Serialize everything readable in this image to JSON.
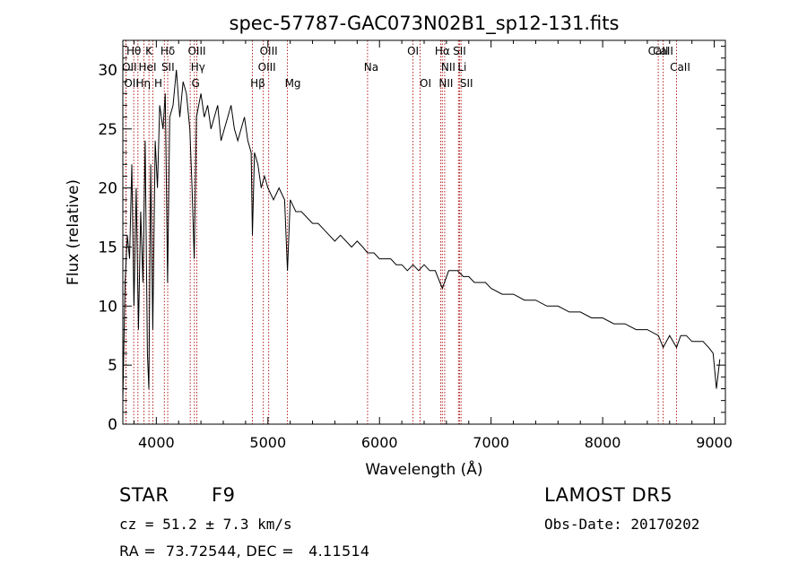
{
  "chart_data": {
    "type": "line",
    "title": "spec-57787-GAC073N02B1_sp12-131.fits",
    "xlabel": "Wavelength (Å)",
    "ylabel": "Flux (relative)",
    "xlim": [
      3700,
      9100
    ],
    "ylim": [
      0,
      32.5
    ],
    "xticks": [
      4000,
      5000,
      6000,
      7000,
      8000,
      9000
    ],
    "xtick_labels": [
      "4000",
      "5000",
      "6000",
      "7000",
      "8000",
      "9000"
    ],
    "yticks": [
      0,
      5,
      10,
      15,
      20,
      25,
      30
    ],
    "ytick_labels": [
      "0",
      "5",
      "10",
      "15",
      "20",
      "25",
      "30"
    ],
    "grid": false,
    "series": [
      {
        "x": [
          3700,
          3720,
          3740,
          3760,
          3780,
          3800,
          3820,
          3840,
          3860,
          3880,
          3900,
          3920,
          3933,
          3950,
          3968,
          3990,
          4010,
          4030,
          4060,
          4080,
          4101,
          4120,
          4150,
          4180,
          4210,
          4240,
          4270,
          4300,
          4320,
          4340,
          4360,
          4380,
          4400,
          4430,
          4460,
          4490,
          4520,
          4550,
          4580,
          4610,
          4640,
          4670,
          4700,
          4730,
          4760,
          4790,
          4820,
          4850,
          4861,
          4880,
          4910,
          4940,
          4970,
          5000,
          5050,
          5100,
          5150,
          5175,
          5200,
          5250,
          5300,
          5350,
          5400,
          5450,
          5500,
          5550,
          5600,
          5650,
          5700,
          5750,
          5800,
          5850,
          5893,
          5950,
          6000,
          6050,
          6100,
          6150,
          6200,
          6250,
          6300,
          6350,
          6400,
          6450,
          6500,
          6563,
          6620,
          6700,
          6750,
          6800,
          6850,
          6900,
          6950,
          7000,
          7100,
          7200,
          7300,
          7400,
          7500,
          7600,
          7700,
          7800,
          7900,
          8000,
          8100,
          8200,
          8300,
          8400,
          8500,
          8542,
          8600,
          8662,
          8700,
          8750,
          8800,
          8850,
          8900,
          8950,
          8990,
          9020,
          9050
        ],
        "values": [
          2,
          12,
          16,
          14,
          22,
          10,
          20,
          8,
          18,
          12,
          24,
          6,
          3,
          22,
          8,
          24,
          20,
          27,
          25,
          28,
          12,
          26,
          27,
          30,
          26,
          29,
          28,
          25,
          20,
          14,
          26,
          27,
          28,
          26,
          27,
          25,
          26,
          27,
          24,
          25,
          26,
          27,
          25,
          24,
          25,
          26,
          24,
          23,
          16,
          23,
          22,
          20,
          21,
          20,
          19,
          20,
          19,
          13,
          19,
          18,
          18,
          17.5,
          17,
          17,
          16.5,
          16,
          15.5,
          16,
          15.5,
          15,
          15.5,
          15,
          14.5,
          14.5,
          14,
          14,
          14,
          13.5,
          13.5,
          13,
          13.5,
          13,
          13.5,
          13,
          13,
          11.5,
          13,
          13,
          12.5,
          12.5,
          12,
          12,
          12,
          11.5,
          11,
          11,
          10.5,
          10.5,
          10,
          10,
          9.5,
          9.5,
          9,
          9,
          8.5,
          8.5,
          8,
          8,
          7.5,
          6.5,
          7.5,
          6.5,
          7.5,
          7.5,
          7,
          7,
          7,
          6.5,
          6,
          3,
          5.5
        ]
      }
    ],
    "lines": [
      {
        "label": "Hθ",
        "x": 3798
      },
      {
        "label": "K",
        "x": 3934
      },
      {
        "label": "Hδ",
        "x": 4102
      },
      {
        "label": "OIII",
        "x": 4363
      },
      {
        "label": "OIII",
        "x": 5007
      },
      {
        "label": "OI",
        "x": 6300
      },
      {
        "label": "Hα",
        "x": 6563
      },
      {
        "label": "SII",
        "x": 6717
      },
      {
        "label": "CaII",
        "x": 8542
      },
      {
        "label": "CaII",
        "x": 8498
      },
      {
        "label": "OII",
        "x": 3727
      },
      {
        "label": "HeI",
        "x": 3889
      },
      {
        "label": "SII",
        "x": 4072
      },
      {
        "label": "Hγ",
        "x": 4341
      },
      {
        "label": "OIII",
        "x": 4959
      },
      {
        "label": "Na",
        "x": 5893
      },
      {
        "label": "NII",
        "x": 6584
      },
      {
        "label": "Li",
        "x": 6708
      },
      {
        "label": "CaII",
        "x": 8662
      },
      {
        "label": "OII",
        "x": 3729
      },
      {
        "label": "Hη",
        "x": 3835
      },
      {
        "label": "H",
        "x": 3969
      },
      {
        "label": "G",
        "x": 4304
      },
      {
        "label": "Hβ",
        "x": 4861
      },
      {
        "label": "Mg",
        "x": 5175
      },
      {
        "label": "OI",
        "x": 6364
      },
      {
        "label": "NII",
        "x": 6548
      },
      {
        "label": "SII",
        "x": 6731
      }
    ]
  },
  "info": {
    "class_label": "STAR",
    "subclass": "F9",
    "survey": "LAMOST DR5",
    "cz": "cz = 51.2 ± 7.3 km/s",
    "obs_date": "Obs-Date: 20170202",
    "radec": "RA =  73.72544, DEC =   4.11514"
  }
}
